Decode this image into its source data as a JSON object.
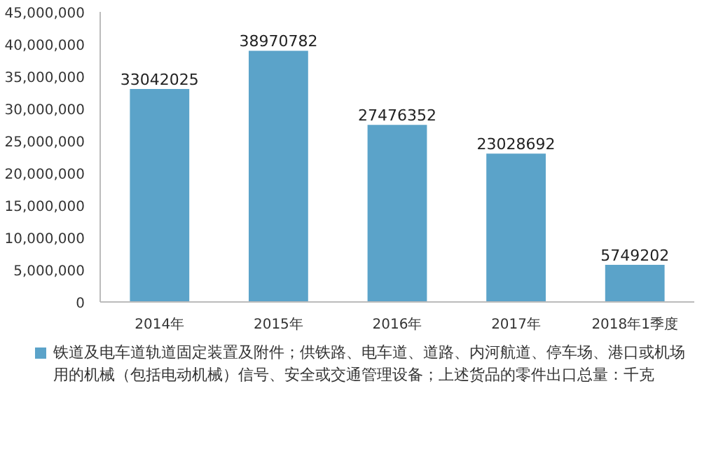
{
  "chart_data": {
    "type": "bar",
    "categories": [
      "2014年",
      "2015年",
      "2016年",
      "2017年",
      "2018年1季度"
    ],
    "series": [
      {
        "name": "铁道及电车道轨道固定装置及附件；供铁路、电车道、道路、内河航道、停车场、港口或机场用的机械（包括电动机械）信号、安全或交通管理设备；上述货品的零件出口总量：千克",
        "color": "#5ba3c9",
        "values": [
          33042025,
          38970782,
          27476352,
          23028692,
          5749202
        ]
      }
    ],
    "ylim": [
      0,
      45000000
    ],
    "yticks": [
      {
        "value": 0,
        "label": "0"
      },
      {
        "value": 5000000,
        "label": "5,000,000"
      },
      {
        "value": 10000000,
        "label": "10,000,000"
      },
      {
        "value": 15000000,
        "label": "15,000,000"
      },
      {
        "value": 20000000,
        "label": "20,000,000"
      },
      {
        "value": 25000000,
        "label": "25,000,000"
      },
      {
        "value": 30000000,
        "label": "30,000,000"
      },
      {
        "value": 35000000,
        "label": "35,000,000"
      },
      {
        "value": 40000000,
        "label": "40,000,000"
      },
      {
        "value": 45000000,
        "label": "45,000,000"
      }
    ],
    "data_labels": true,
    "grid": false,
    "legend": "bottom"
  }
}
